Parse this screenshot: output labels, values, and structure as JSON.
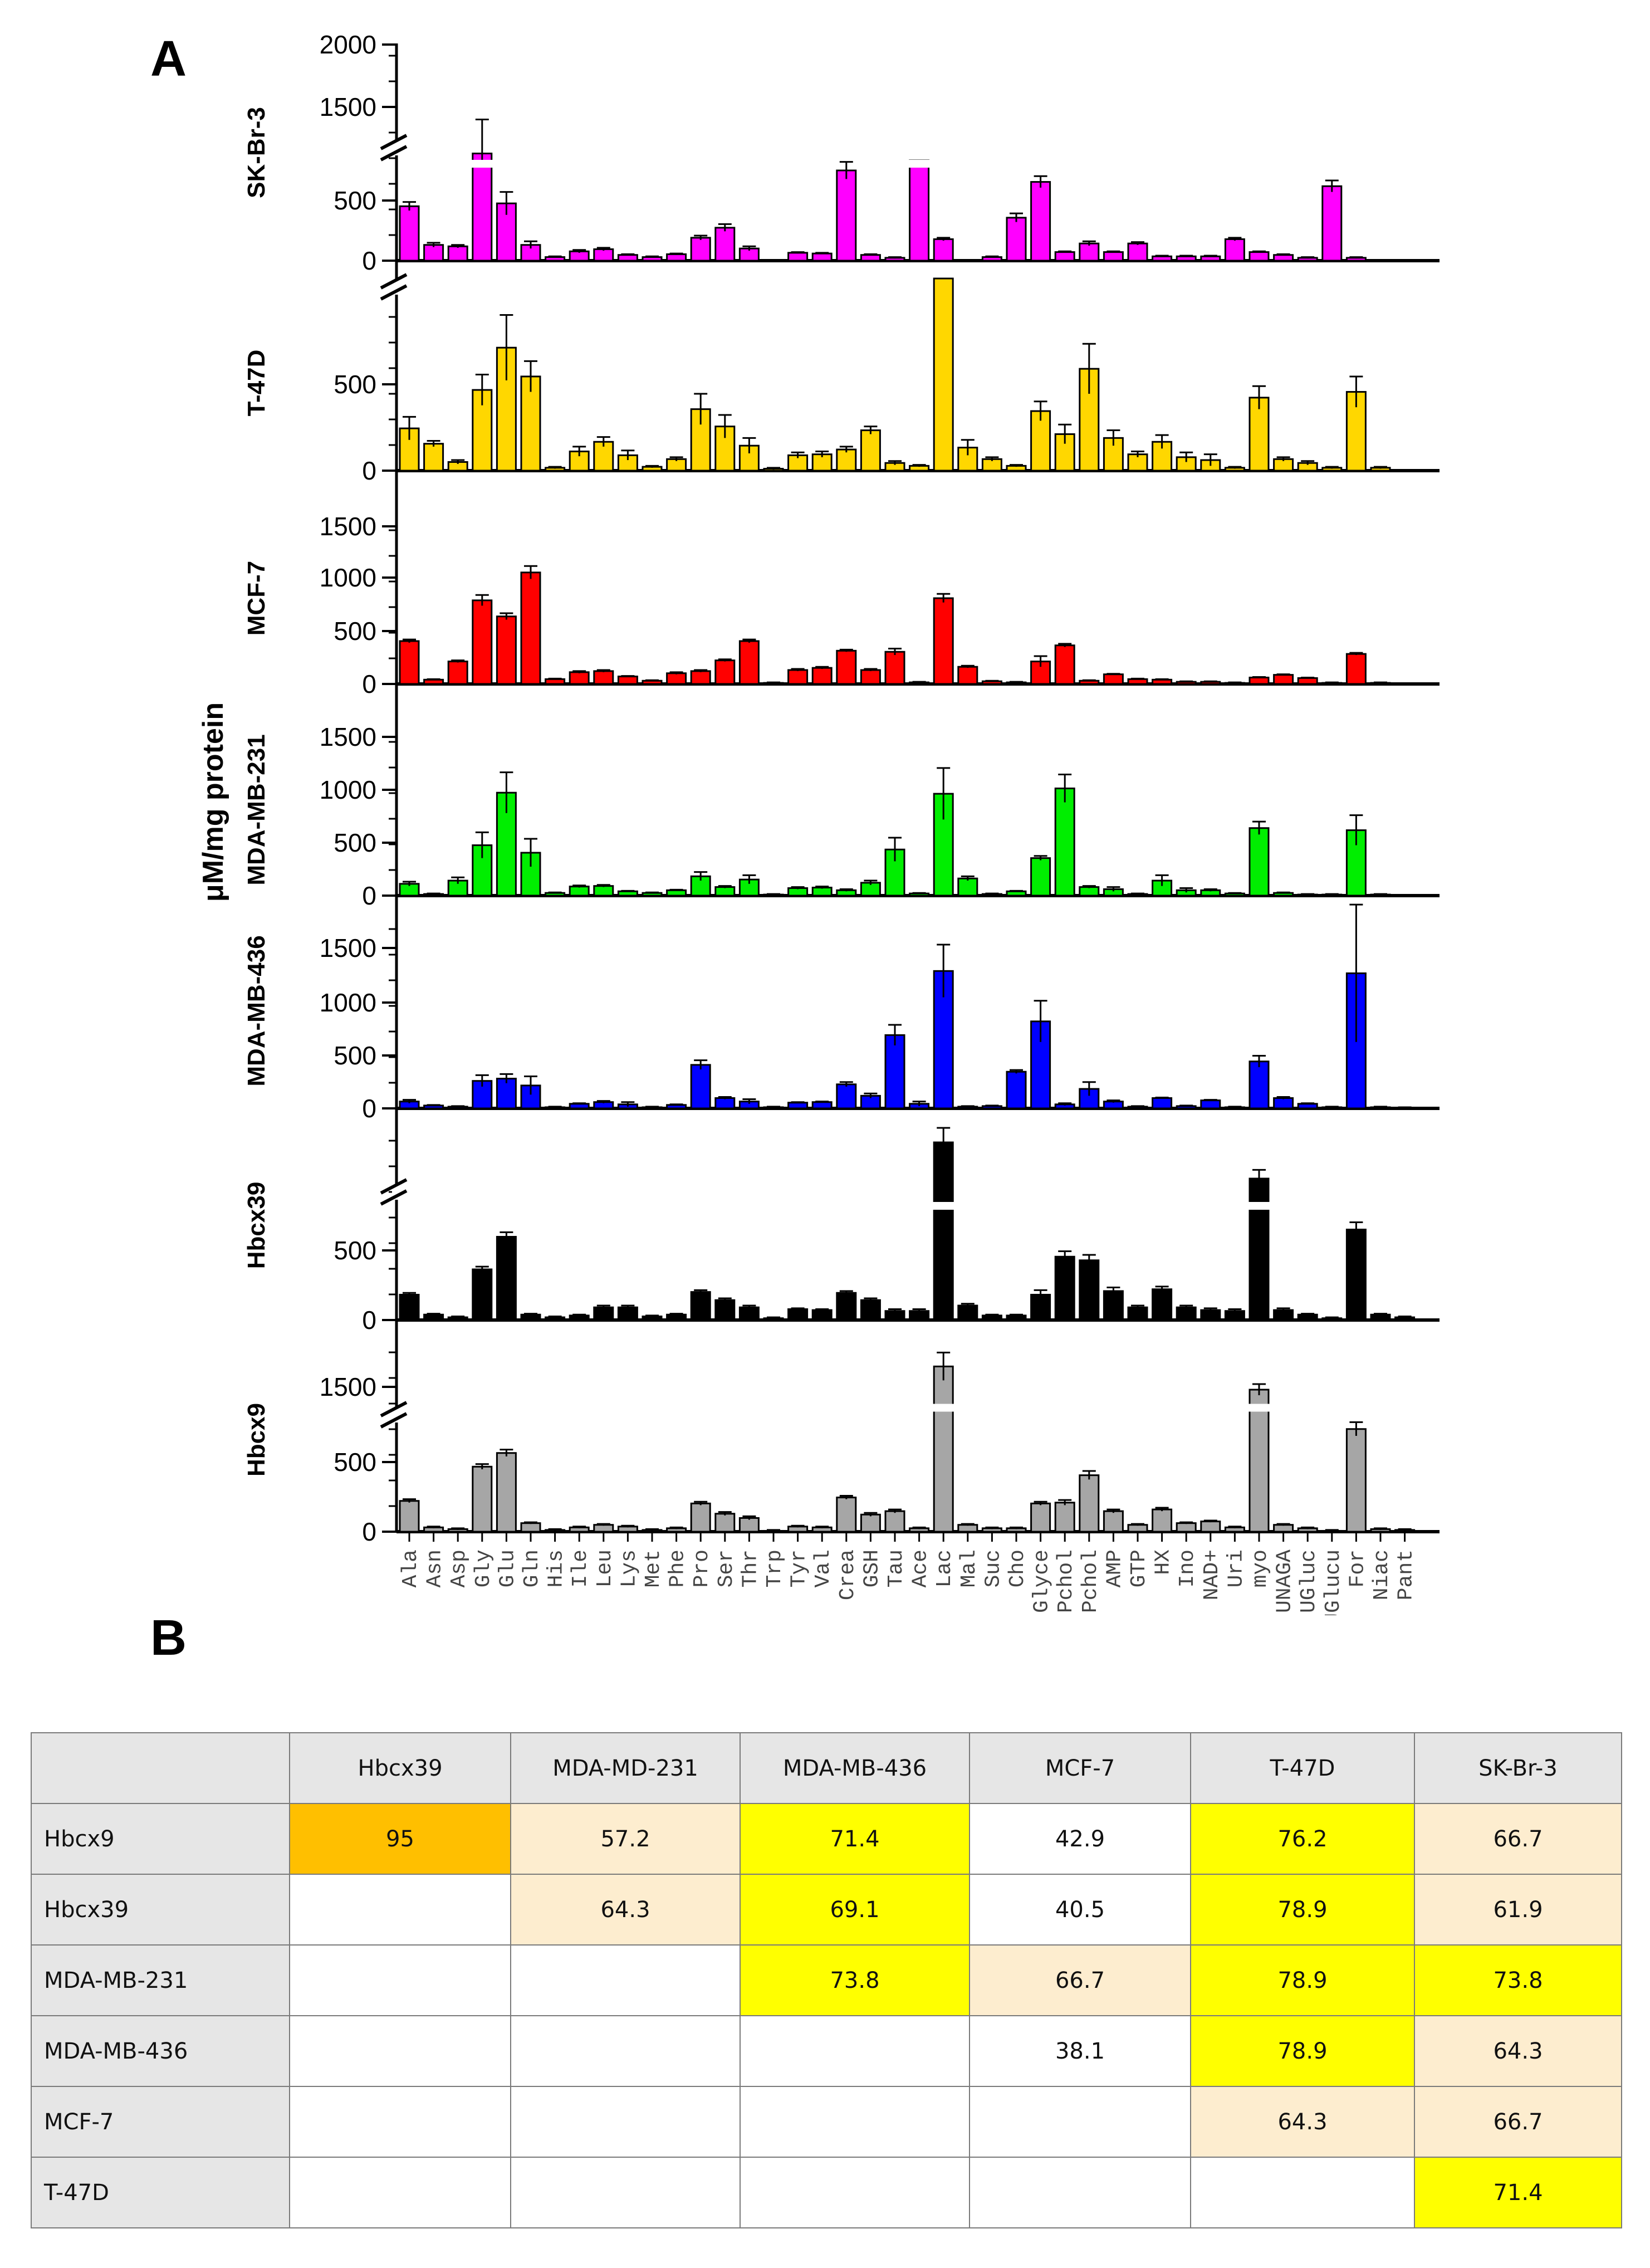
{
  "panels": {
    "a_label": "A",
    "b_label": "B"
  },
  "chart_data": {
    "type": "bar",
    "ylabel": "μM/mg protein",
    "categories": [
      "Ala",
      "Asn",
      "Asp",
      "Gly",
      "Glu",
      "Gln",
      "His",
      "Ile",
      "Leu",
      "Lys",
      "Met",
      "Phe",
      "Pro",
      "Ser",
      "Thr",
      "Trp",
      "Tyr",
      "Val",
      "Crea",
      "GSH",
      "Tau",
      "Ace",
      "Lac",
      "Mal",
      "Suc",
      "Cho",
      "Glyce",
      "O-Pchol",
      "Gly-Pchol",
      "AMP",
      "GTP",
      "HX",
      "Ino",
      "NAD+",
      "Uri",
      "myo",
      "UNAGA",
      "UGluc",
      "UGlucu",
      "For",
      "Niac",
      "Pant"
    ],
    "series": [
      {
        "name": "SK-Br-3",
        "color": "#ff00ff",
        "ticks": [
          "2000",
          "1500",
          "500",
          "0"
        ],
        "values": [
          380,
          110,
          100,
          1200,
          400,
          110,
          25,
          65,
          80,
          40,
          25,
          45,
          160,
          230,
          85,
          0,
          55,
          50,
          630,
          40,
          20,
          870,
          150,
          0,
          25,
          300,
          550,
          60,
          120,
          60,
          120,
          30,
          30,
          30,
          150,
          60,
          40,
          20,
          520,
          20,
          0,
          0
        ],
        "errors": [
          30,
          15,
          10,
          250,
          80,
          25,
          5,
          10,
          10,
          5,
          5,
          5,
          15,
          25,
          15,
          0,
          5,
          5,
          60,
          5,
          5,
          40,
          10,
          0,
          5,
          30,
          40,
          5,
          15,
          5,
          10,
          5,
          5,
          5,
          10,
          5,
          5,
          5,
          40,
          5,
          0,
          0
        ]
      },
      {
        "name": "T-47D",
        "color": "#ffd700",
        "ticks": [
          "500",
          "0"
        ],
        "values": [
          220,
          140,
          45,
          420,
          640,
          490,
          15,
          100,
          150,
          80,
          20,
          60,
          320,
          230,
          130,
          10,
          80,
          85,
          110,
          210,
          40,
          25,
          1000,
          120,
          60,
          25,
          310,
          190,
          530,
          170,
          85,
          150,
          70,
          55,
          15,
          380,
          60,
          40,
          15,
          410,
          15,
          0
        ],
        "errors": [
          60,
          15,
          10,
          80,
          170,
          80,
          5,
          25,
          25,
          25,
          5,
          10,
          80,
          60,
          40,
          5,
          15,
          15,
          15,
          20,
          10,
          5,
          0,
          40,
          10,
          5,
          50,
          50,
          130,
          40,
          15,
          35,
          25,
          30,
          5,
          60,
          10,
          10,
          5,
          80,
          5,
          0
        ]
      },
      {
        "name": "MCF-7",
        "color": "#ff0000",
        "ticks": [
          "1500",
          "1000",
          "500",
          "0"
        ],
        "values": [
          400,
          40,
          210,
          780,
          630,
          1040,
          45,
          110,
          120,
          70,
          30,
          100,
          120,
          220,
          400,
          10,
          130,
          150,
          310,
          130,
          300,
          15,
          800,
          160,
          25,
          15,
          210,
          360,
          30,
          90,
          45,
          40,
          20,
          20,
          10,
          60,
          85,
          55,
          10,
          280,
          10,
          0
        ],
        "errors": [
          15,
          5,
          10,
          50,
          30,
          60,
          5,
          10,
          10,
          5,
          5,
          10,
          10,
          10,
          15,
          5,
          10,
          10,
          10,
          10,
          30,
          5,
          40,
          10,
          5,
          5,
          50,
          15,
          5,
          5,
          5,
          5,
          5,
          5,
          5,
          5,
          5,
          5,
          5,
          10,
          5,
          0
        ]
      },
      {
        "name": "MDA-MB-231",
        "color": "#00ee00",
        "ticks": [
          "1500",
          "1000",
          "500",
          "0"
        ],
        "values": [
          110,
          15,
          140,
          470,
          960,
          400,
          25,
          85,
          90,
          40,
          25,
          50,
          180,
          80,
          150,
          10,
          70,
          75,
          50,
          120,
          430,
          20,
          950,
          160,
          15,
          40,
          350,
          1000,
          80,
          60,
          15,
          140,
          50,
          50,
          20,
          630,
          25,
          10,
          10,
          610,
          10,
          0
        ],
        "errors": [
          20,
          5,
          30,
          120,
          190,
          130,
          5,
          10,
          10,
          5,
          5,
          5,
          40,
          10,
          40,
          5,
          10,
          10,
          10,
          20,
          110,
          5,
          240,
          20,
          5,
          5,
          20,
          130,
          10,
          20,
          5,
          50,
          20,
          10,
          5,
          60,
          5,
          5,
          5,
          140,
          5,
          0
        ]
      },
      {
        "name": "MDA-MB-436",
        "color": "#0000ff",
        "ticks": [
          "1500",
          "1000",
          "500",
          "0"
        ],
        "values": [
          60,
          25,
          15,
          240,
          260,
          200,
          10,
          40,
          55,
          35,
          10,
          30,
          380,
          90,
          60,
          10,
          50,
          55,
          210,
          110,
          640,
          40,
          1200,
          15,
          20,
          320,
          760,
          35,
          170,
          60,
          15,
          90,
          20,
          70,
          10,
          410,
          90,
          40,
          10,
          1180,
          10,
          5
        ],
        "errors": [
          15,
          5,
          5,
          50,
          40,
          80,
          5,
          5,
          10,
          20,
          5,
          5,
          40,
          10,
          20,
          5,
          5,
          5,
          20,
          20,
          90,
          20,
          230,
          5,
          5,
          15,
          180,
          10,
          60,
          10,
          5,
          5,
          5,
          5,
          5,
          50,
          10,
          5,
          5,
          600,
          5,
          5
        ],
        "zero_tick": "0"
      },
      {
        "name": "Hbcx39",
        "color": "#000000",
        "ticks": [
          "500",
          "0"
        ],
        "values": [
          140,
          30,
          15,
          280,
          460,
          30,
          15,
          25,
          70,
          70,
          20,
          30,
          155,
          110,
          70,
          10,
          60,
          55,
          150,
          110,
          50,
          50,
          1200,
          80,
          25,
          25,
          140,
          350,
          330,
          160,
          70,
          170,
          70,
          55,
          50,
          950,
          55,
          30,
          10,
          500,
          30,
          15
        ],
        "errors": [
          10,
          5,
          5,
          15,
          25,
          5,
          5,
          5,
          10,
          10,
          5,
          5,
          10,
          10,
          10,
          5,
          5,
          5,
          10,
          10,
          10,
          10,
          200,
          10,
          5,
          5,
          25,
          30,
          30,
          20,
          10,
          15,
          10,
          10,
          10,
          60,
          10,
          5,
          5,
          40,
          5,
          5
        ],
        "zero_tick": "0"
      },
      {
        "name": "Hbcx9",
        "color": "#a6a6a6",
        "ticks": [
          "1500",
          "500",
          "0"
        ],
        "values": [
          180,
          25,
          15,
          380,
          460,
          50,
          10,
          25,
          40,
          30,
          10,
          20,
          165,
          105,
          80,
          5,
          30,
          25,
          200,
          100,
          120,
          20,
          1500,
          40,
          20,
          20,
          165,
          170,
          330,
          120,
          40,
          130,
          50,
          60,
          25,
          1250,
          40,
          20,
          5,
          600,
          15,
          10
        ],
        "errors": [
          10,
          5,
          5,
          15,
          20,
          5,
          5,
          5,
          5,
          5,
          5,
          5,
          10,
          10,
          10,
          5,
          5,
          5,
          10,
          10,
          10,
          5,
          150,
          5,
          5,
          5,
          10,
          15,
          25,
          10,
          5,
          10,
          5,
          5,
          5,
          60,
          5,
          5,
          5,
          40,
          5,
          5
        ]
      }
    ]
  },
  "table": {
    "headers": [
      "",
      "Hbcx39",
      "MDA-MD-231",
      "MDA-MB-436",
      "MCF-7",
      "T-47D",
      "SK-Br-3"
    ],
    "highlight_colors": {
      "orange": "#ffbf00",
      "yellow": "#ffff00",
      "cream": "#fdedcf",
      "white": "#ffffff"
    },
    "rows": [
      {
        "label": "Hbcx9",
        "cells": [
          "95",
          "57.2",
          "71.4",
          "42.9",
          "76.2",
          "66.7"
        ],
        "fills": [
          "orange",
          "cream",
          "yellow",
          "white",
          "yellow",
          "cream"
        ]
      },
      {
        "label": "Hbcx39",
        "cells": [
          "",
          "64.3",
          "69.1",
          "40.5",
          "78.9",
          "61.9"
        ],
        "fills": [
          "white",
          "cream",
          "yellow",
          "white",
          "yellow",
          "cream"
        ]
      },
      {
        "label": "MDA-MB-231",
        "cells": [
          "",
          "",
          "73.8",
          "66.7",
          "78.9",
          "73.8"
        ],
        "fills": [
          "white",
          "white",
          "yellow",
          "cream",
          "yellow",
          "yellow"
        ]
      },
      {
        "label": "MDA-MB-436",
        "cells": [
          "",
          "",
          "",
          "38.1",
          "78.9",
          "64.3"
        ],
        "fills": [
          "white",
          "white",
          "white",
          "white",
          "yellow",
          "cream"
        ]
      },
      {
        "label": "MCF-7",
        "cells": [
          "",
          "",
          "",
          "",
          "64.3",
          "66.7"
        ],
        "fills": [
          "white",
          "white",
          "white",
          "white",
          "cream",
          "cream"
        ]
      },
      {
        "label": "T-47D",
        "cells": [
          "",
          "",
          "",
          "",
          "",
          "71.4"
        ],
        "fills": [
          "white",
          "white",
          "white",
          "white",
          "white",
          "yellow"
        ]
      }
    ]
  }
}
